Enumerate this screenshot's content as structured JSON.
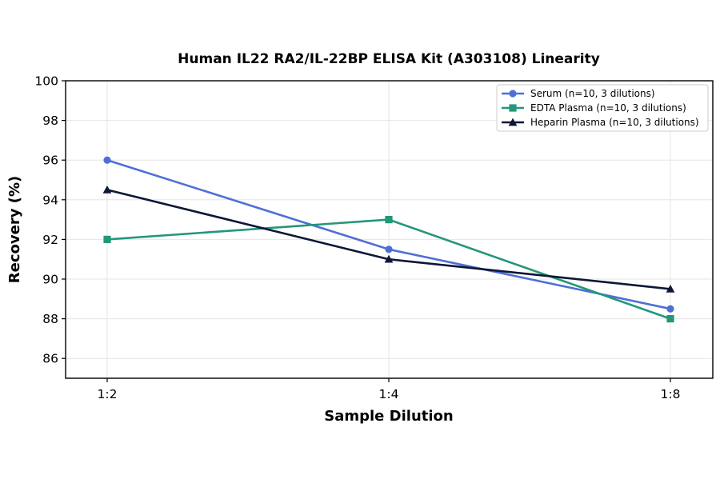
{
  "chart_data": {
    "type": "line",
    "title": "Human IL22 RA2/IL-22BP ELISA Kit (A303108) Linearity",
    "xlabel": "Sample Dilution",
    "ylabel": "Recovery (%)",
    "categories": [
      "1:2",
      "1:4",
      "1:8"
    ],
    "ylim": [
      85,
      100
    ],
    "yticks": [
      86,
      88,
      90,
      92,
      94,
      96,
      98,
      100
    ],
    "grid": true,
    "legend_position": "top-right",
    "series": [
      {
        "name": "Serum (n=10, 3 dilutions)",
        "values": [
          96,
          91.5,
          88.5
        ],
        "color": "#4f6fd6",
        "marker": "circle"
      },
      {
        "name": "EDTA Plasma (n=10, 3 dilutions)",
        "values": [
          92,
          93,
          88
        ],
        "color": "#23977a",
        "marker": "square"
      },
      {
        "name": "Heparin Plasma (n=10, 3 dilutions)",
        "values": [
          94.5,
          91,
          89.5
        ],
        "color": "#0d1736",
        "marker": "triangle"
      }
    ]
  }
}
